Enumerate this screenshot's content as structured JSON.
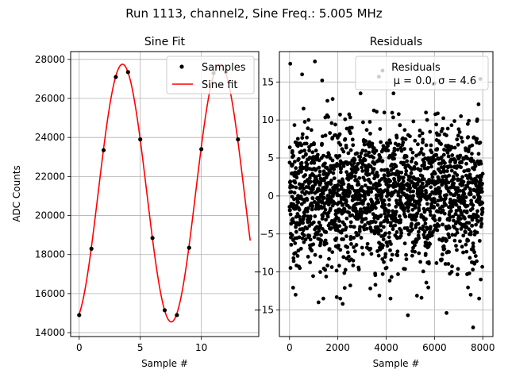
{
  "figure": {
    "suptitle": "Run 1113, channel2, Sine Freq.: 5.005 MHz"
  },
  "colors": {
    "samples": "#000000",
    "fit": "#ff0000",
    "residuals": "#000000",
    "grid": "#b0b0b0"
  },
  "chart_data": [
    {
      "type": "scatter+line",
      "title": "Sine Fit",
      "xlabel": "Sample #",
      "ylabel": "ADC Counts",
      "xlim": [
        -0.7,
        14.7
      ],
      "ylim": [
        13800,
        28400
      ],
      "xticks": [
        0,
        5,
        10
      ],
      "yticks": [
        14000,
        16000,
        18000,
        20000,
        22000,
        24000,
        26000,
        28000
      ],
      "grid": true,
      "legend": {
        "placement": "upper-right",
        "entries": [
          "Samples",
          "Sine fit"
        ]
      },
      "series": [
        {
          "name": "Samples",
          "kind": "scatter",
          "x": [
            0,
            1,
            2,
            3,
            4,
            5,
            6,
            7,
            8,
            9,
            10,
            11,
            12,
            13
          ],
          "y": [
            14900,
            18300,
            23350,
            27100,
            27350,
            23900,
            18850,
            15150,
            14900,
            18350,
            23400,
            27300,
            27350,
            23900
          ]
        },
        {
          "name": "Sine fit",
          "kind": "line",
          "model": {
            "offset": 21150,
            "amplitude": 6600,
            "period": 7.98,
            "phase_x": 1.55,
            "x_range": [
              0,
              14
            ]
          }
        }
      ]
    },
    {
      "type": "scatter",
      "title": "Residuals",
      "xlabel": "Sample #",
      "xlim": [
        -420,
        8420
      ],
      "ylim": [
        -18.5,
        19.0
      ],
      "xticks": [
        0,
        2000,
        4000,
        6000,
        8000
      ],
      "yticks": [
        -15,
        -10,
        -5,
        0,
        5,
        10,
        15
      ],
      "grid": true,
      "legend": {
        "placement": "upper-right",
        "lines": [
          "Residuals",
          "μ = 0.0, σ = 4.6"
        ]
      },
      "summary": {
        "n": 8000,
        "mean": 0.0,
        "std": 4.6
      },
      "highlighted_points": [
        {
          "x": 30,
          "y": 17.4
        },
        {
          "x": 1050,
          "y": 17.7
        },
        {
          "x": 520,
          "y": 16.0
        },
        {
          "x": 1350,
          "y": 15.2
        },
        {
          "x": 3700,
          "y": 15.7
        },
        {
          "x": 4900,
          "y": -15.7
        },
        {
          "x": 7600,
          "y": -17.3
        },
        {
          "x": 6500,
          "y": -15.4
        },
        {
          "x": 2200,
          "y": -14.2
        },
        {
          "x": 250,
          "y": -13.0
        },
        {
          "x": 3850,
          "y": 16.5
        },
        {
          "x": 7900,
          "y": 15.4
        },
        {
          "x": 7500,
          "y": -13.0
        },
        {
          "x": 1200,
          "y": -14.0
        },
        {
          "x": 6000,
          "y": 14.8
        }
      ]
    }
  ]
}
